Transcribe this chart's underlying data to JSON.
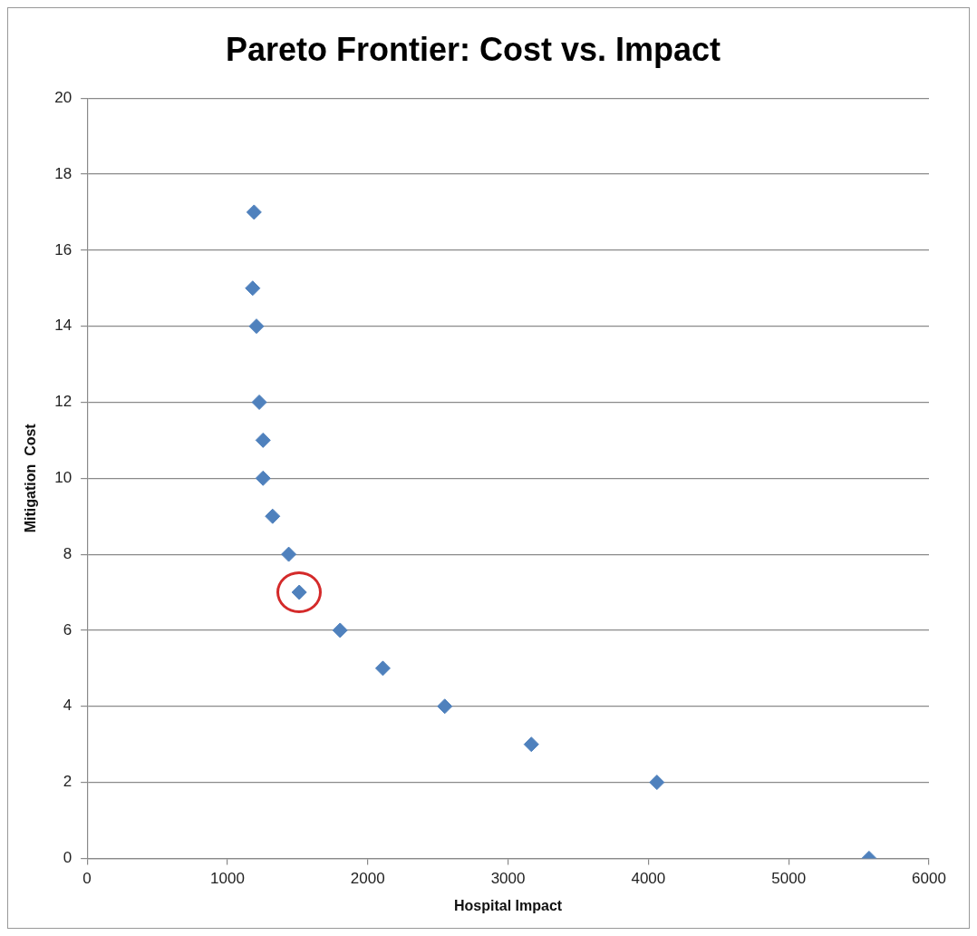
{
  "chart_data": {
    "type": "scatter",
    "title": "Pareto Frontier: Cost vs. Impact",
    "xlabel": "Hospital Impact",
    "ylabel": "Mitigation  Cost",
    "series": [
      {
        "color": "#4f81bd",
        "x": [
          1190,
          1180,
          1207,
          1227,
          1254,
          1254,
          1322,
          1437,
          1512,
          1803,
          2108,
          2549,
          3166,
          4061,
          5573
        ],
        "values": [
          17,
          15,
          14,
          12,
          11,
          10,
          9,
          8,
          7,
          6,
          5,
          4,
          3,
          2,
          0
        ]
      }
    ],
    "xlim": [
      0,
      6000
    ],
    "xticks": [
      0,
      1000,
      2000,
      3000,
      4000,
      5000,
      6000
    ],
    "ylim": [
      0,
      20
    ],
    "yticks": [
      0,
      2,
      4,
      6,
      8,
      10,
      12,
      14,
      16,
      18,
      20
    ],
    "grid": "y",
    "legend": false,
    "marker": "diamond"
  }
}
